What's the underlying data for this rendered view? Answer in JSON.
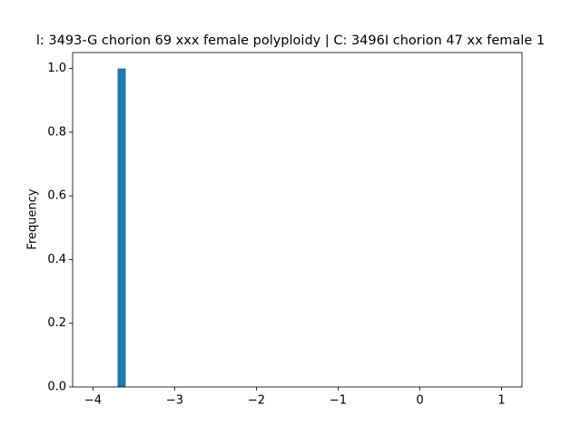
{
  "chart_data": {
    "type": "histogram",
    "title": "l: 3493-G chorion 69 xxx female polyploidy | C: 3496I chorion 47 xx female 1",
    "ylabel": "Frequency",
    "color": "#1f77b4",
    "bins": [
      -4.0,
      -3.9,
      -3.8,
      -3.7,
      -3.6,
      -3.5,
      -3.4,
      -3.3,
      -3.2,
      -3.1,
      -3.0,
      -2.9,
      -2.8,
      -2.7,
      -2.6,
      -2.5,
      -2.4,
      -2.3,
      -2.2,
      -2.1,
      -2.0,
      -1.9,
      -1.8,
      -1.7,
      -1.6,
      -1.5,
      -1.4,
      -1.3,
      -1.2,
      -1.1,
      -1.0,
      -0.9,
      -0.8,
      -0.7,
      -0.6,
      -0.5,
      -0.4,
      -0.3,
      -0.2,
      -0.1,
      0.0,
      0.1,
      0.2,
      0.3,
      0.4,
      0.5,
      0.6,
      0.7,
      0.8,
      0.9,
      1.0
    ],
    "values": [
      0,
      0,
      0,
      1,
      0,
      0,
      0,
      0,
      0,
      0,
      0,
      0,
      0,
      0,
      0,
      0,
      0,
      0,
      0,
      0,
      0,
      0,
      0,
      0,
      0,
      0,
      0,
      0,
      0,
      0,
      0,
      0,
      0,
      0,
      0,
      0,
      0,
      0,
      0,
      0,
      0,
      0,
      0,
      0,
      0,
      0,
      0,
      0,
      0,
      0
    ],
    "xlim": [
      -4.25,
      1.25
    ],
    "xticks": [
      {
        "value": -4,
        "label": "−4"
      },
      {
        "value": -3,
        "label": "−3"
      },
      {
        "value": -2,
        "label": "−2"
      },
      {
        "value": -1,
        "label": "−1"
      },
      0,
      1
    ],
    "ylim": [
      0,
      1.05
    ],
    "yticks": [
      {
        "value": 0,
        "label": "0.0"
      },
      {
        "value": 0.2,
        "label": "0.2"
      },
      {
        "value": 0.4,
        "label": "0.4"
      },
      {
        "value": 0.6,
        "label": "0.6"
      },
      {
        "value": 0.8,
        "label": "0.8"
      },
      {
        "value": 1.0,
        "label": "1.0"
      }
    ]
  }
}
